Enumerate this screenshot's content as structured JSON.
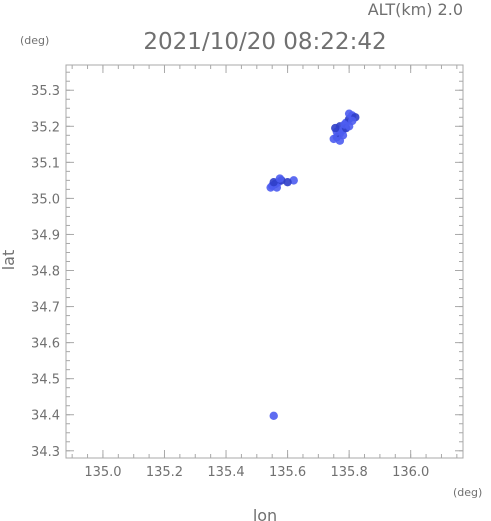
{
  "chart_data": {
    "type": "scatter",
    "title": "2021/10/20 08:22:42",
    "subtitle": "ALT(km) 2.0",
    "xlabel": "lon",
    "ylabel": "lat",
    "x_unit": "(deg)",
    "y_unit": "(deg)",
    "xlim": [
      134.88,
      136.17
    ],
    "ylim": [
      34.28,
      35.37
    ],
    "xticks": [
      "135.0",
      "135.2",
      "135.4",
      "135.6",
      "135.8",
      "136.0"
    ],
    "yticks": [
      "34.3",
      "34.4",
      "34.5",
      "34.6",
      "34.7",
      "34.8",
      "34.9",
      "35.0",
      "35.1",
      "35.2",
      "35.3"
    ],
    "grid": false,
    "colors": {
      "echo": "#4c5cf0",
      "echo_dark": "#2f3ec8",
      "axis": "#a8a8a8",
      "text": "#707070"
    },
    "series": [
      {
        "points": [
          [
            135.77,
            35.2
          ],
          [
            135.78,
            35.19
          ],
          [
            135.77,
            35.18
          ],
          [
            135.76,
            35.17
          ],
          [
            135.75,
            35.165
          ],
          [
            135.79,
            35.21
          ],
          [
            135.8,
            35.22
          ],
          [
            135.81,
            35.23
          ],
          [
            135.8,
            35.235
          ],
          [
            135.82,
            35.225
          ],
          [
            135.78,
            35.175
          ],
          [
            135.76,
            35.185
          ],
          [
            135.79,
            35.195
          ],
          [
            135.81,
            35.215
          ],
          [
            135.77,
            35.16
          ],
          [
            135.755,
            35.195
          ],
          [
            135.785,
            35.205
          ],
          [
            135.8,
            35.2
          ],
          [
            135.56,
            35.04
          ],
          [
            135.55,
            35.035
          ],
          [
            135.57,
            35.045
          ],
          [
            135.58,
            35.05
          ],
          [
            135.545,
            35.03
          ],
          [
            135.565,
            35.03
          ],
          [
            135.555,
            35.045
          ],
          [
            135.575,
            35.055
          ],
          [
            135.62,
            35.05
          ],
          [
            135.6,
            35.045
          ],
          [
            135.555,
            34.397
          ]
        ]
      }
    ]
  }
}
